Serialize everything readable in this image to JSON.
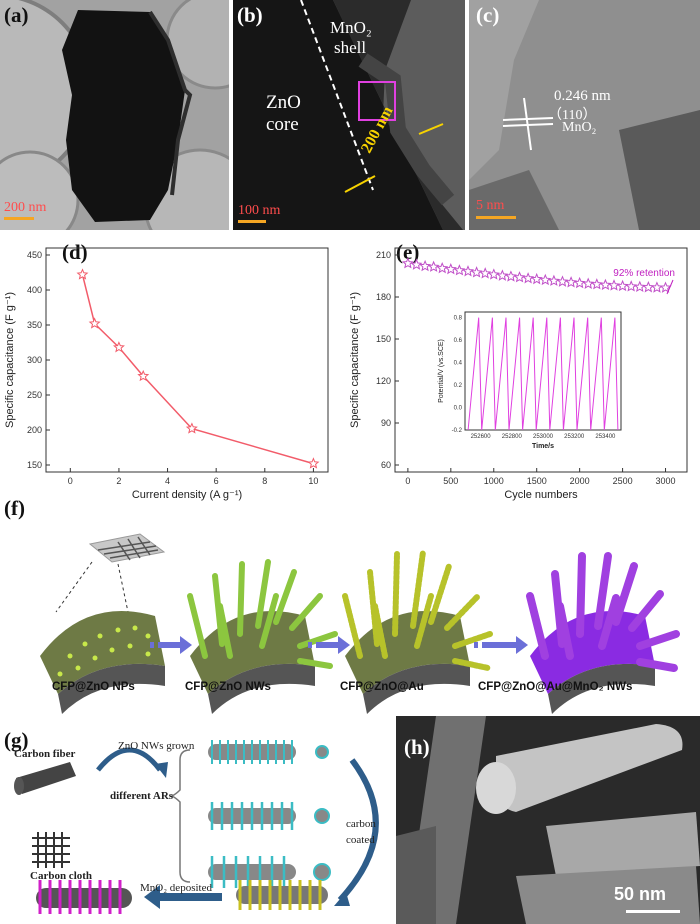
{
  "panels": {
    "a": {
      "label": "(a)",
      "scale": "200 nm"
    },
    "b": {
      "label": "(b)",
      "scale": "100 nm",
      "shell": "MnO₂",
      "shell2": "shell",
      "core": "ZnO",
      "core2": "core",
      "thickness": "200 nm"
    },
    "c": {
      "label": "(c)",
      "scale": "5 nm",
      "spacing": "0.246 nm",
      "plane": "（110）",
      "material": "MnO₂"
    },
    "d": {
      "label": "(d)"
    },
    "e": {
      "label": "(e)",
      "retention": "92% retention"
    },
    "f": {
      "label": "(f)",
      "steps": [
        "CFP@ZnO NPs",
        "CFP@ZnO NWs",
        "CFP@ZnO@Au",
        "CFP@ZnO@Au@MnO₂ NWs"
      ]
    },
    "g": {
      "label": "(g)",
      "carbon_fiber": "Carbon fiber",
      "carbon_cloth": "Carbon cloth",
      "zno_grown": "ZnO NWs grown",
      "different_ars": "different ARs",
      "carbon": "carbon",
      "coated": "coated",
      "mno2_deposited": "MnO₂ deposited"
    },
    "h": {
      "label": "(h)",
      "scale": "50 nm"
    }
  },
  "chart_data": [
    {
      "type": "line",
      "panel": "d",
      "x": [
        0.5,
        1,
        2,
        3,
        5,
        10
      ],
      "values": [
        422,
        352,
        318,
        277,
        202,
        152
      ],
      "xlabel": "Current density (A g⁻¹)",
      "ylabel": "Specific capacitance (F g⁻¹)",
      "xlim": [
        -1,
        10.6
      ],
      "ylim": [
        140,
        460
      ],
      "xticks": [
        "0",
        "2",
        "4",
        "6",
        "8",
        "10"
      ],
      "yticks": [
        "150",
        "200",
        "250",
        "300",
        "350",
        "400",
        "450"
      ],
      "color": "#f25c6a"
    },
    {
      "type": "scatter",
      "panel": "e",
      "x": [
        0,
        100,
        200,
        300,
        400,
        500,
        600,
        700,
        800,
        900,
        1000,
        1100,
        1200,
        1300,
        1400,
        1500,
        1600,
        1700,
        1800,
        1900,
        2000,
        2100,
        2200,
        2300,
        2400,
        2500,
        2600,
        2700,
        2800,
        2900,
        3000
      ],
      "values": [
        204,
        203,
        202,
        201.5,
        200.5,
        199.8,
        199,
        198.3,
        197.5,
        196.8,
        196,
        195.2,
        194.6,
        194,
        193.3,
        192.7,
        192.1,
        191.5,
        190.9,
        190.4,
        189.9,
        189.4,
        189,
        188.6,
        188.2,
        187.8,
        187.5,
        187.2,
        186.9,
        186.7,
        186.6
      ],
      "xlabel": "Cycle numbers",
      "ylabel": "Specific capacitance (F g⁻¹)",
      "xlim": [
        -150,
        3250
      ],
      "ylim": [
        55,
        215
      ],
      "xticks": [
        "0",
        "500",
        "1000",
        "1500",
        "2000",
        "2500",
        "3000"
      ],
      "yticks": [
        "60",
        "90",
        "120",
        "150",
        "180",
        "210"
      ],
      "color": "#c050c8",
      "inset": {
        "type": "line",
        "xlabel": "Time/s",
        "ylabel": "Potential/V (vs.SCE)",
        "xlim": [
          252500,
          253500
        ],
        "ylim": [
          -0.2,
          0.85
        ],
        "xticks": [
          "252600",
          "252800",
          "253000",
          "253200",
          "253400"
        ],
        "yticks": [
          "-0.2",
          "0.0",
          "0.2",
          "0.4",
          "0.6",
          "0.8"
        ],
        "cycles": 11,
        "vmin": -0.2,
        "vmax": 0.8
      }
    }
  ]
}
